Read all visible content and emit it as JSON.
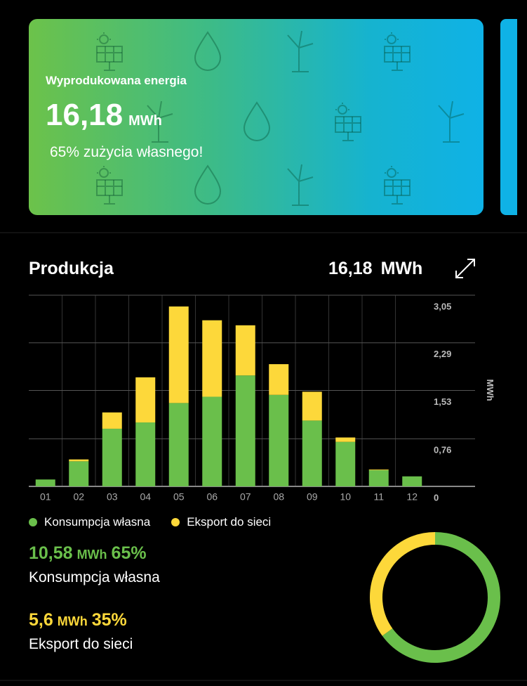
{
  "card": {
    "title": "Wyprodukowana energia",
    "value": "16,18",
    "unit": "MWh",
    "subtitle": "65% zużycia własnego!"
  },
  "section": {
    "title": "Produkcja",
    "total": "16,18",
    "unit": "MWh"
  },
  "chart_data": [
    {
      "type": "bar",
      "stacked": true,
      "categories": [
        "01",
        "02",
        "03",
        "04",
        "05",
        "06",
        "07",
        "08",
        "09",
        "10",
        "11",
        "12"
      ],
      "series": [
        {
          "name": "Konsumpcja własna",
          "color": "#6abf4b",
          "values": [
            0.11,
            0.4,
            0.92,
            1.02,
            1.33,
            1.43,
            1.77,
            1.46,
            1.05,
            0.71,
            0.26,
            0.16
          ]
        },
        {
          "name": "Eksport do sieci",
          "color": "#fdd83a",
          "values": [
            0,
            0.03,
            0.26,
            0.72,
            1.54,
            1.22,
            0.8,
            0.49,
            0.46,
            0.07,
            0.01,
            0
          ]
        }
      ],
      "ylim": [
        0,
        3.05
      ],
      "yticks": [
        0,
        {
          "value": 0.76,
          "label": "0,76"
        },
        {
          "value": 1.53,
          "label": "1,53"
        },
        {
          "value": 2.29,
          "label": "2,29"
        },
        {
          "value": 3.05,
          "label": "3,05"
        }
      ],
      "y_label": "MWh",
      "grid": true
    },
    {
      "type": "pie",
      "donut": true,
      "categories": [
        "Konsumpcja własna",
        "Eksport do sieci"
      ],
      "values": [
        65,
        35
      ],
      "value_labels": [
        "65%",
        "35%"
      ],
      "amount_labels": [
        "10,58",
        "5,6"
      ],
      "unit": "MWh",
      "colors": [
        "#6abf4b",
        "#fdd83a"
      ]
    }
  ]
}
